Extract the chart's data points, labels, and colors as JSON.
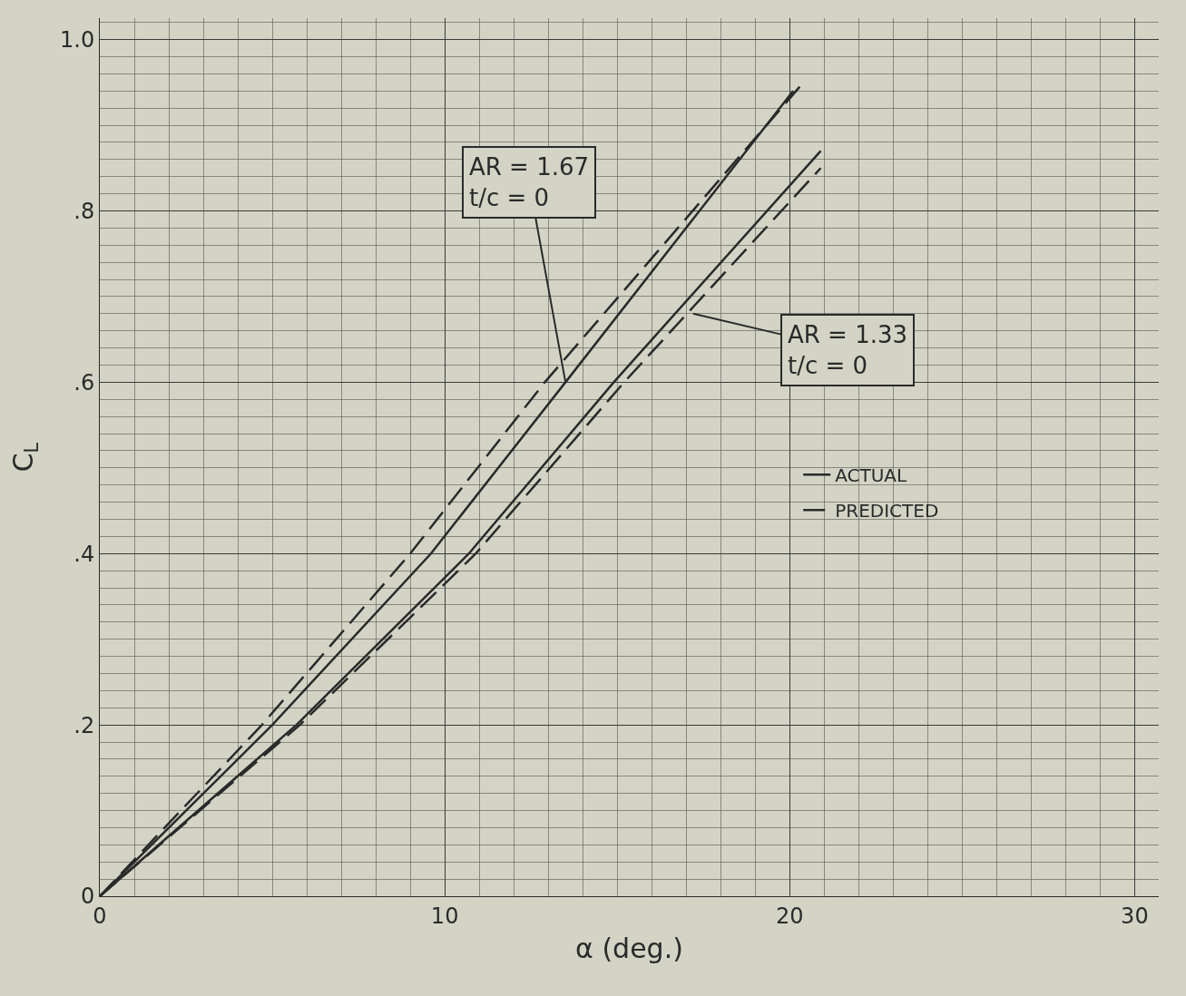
{
  "chart_data": {
    "type": "line",
    "xlabel": "α (deg.)",
    "ylabel": "C$_{L}$",
    "xlim": [
      0,
      30.7
    ],
    "ylim": [
      0,
      1.025
    ],
    "xticks": [
      0,
      10,
      20,
      30
    ],
    "yticks": [
      0,
      {
        "value": 0.2,
        "label": ".2"
      },
      {
        "value": 0.4,
        "label": ".4"
      },
      {
        "value": 0.6,
        "label": ".6"
      },
      {
        "value": 0.8,
        "label": ".8"
      },
      {
        "value": 1.0,
        "label": "1.0"
      }
    ],
    "grid": true,
    "legend": "right",
    "series": [
      {
        "name": "ACTUAL",
        "color": "#2a2a2a",
        "line_style": "solid",
        "x": [
          0,
          5.0,
          9.6,
          13.5,
          20.1
        ],
        "values": [
          0,
          0.2,
          0.4,
          0.6,
          0.94
        ]
      },
      {
        "name": "PREDICTED",
        "color": "#2a2a2a",
        "line_style": "dashed",
        "x": [
          0,
          4.7,
          9.0,
          12.9,
          20.4
        ],
        "values": [
          0,
          0.2,
          0.4,
          0.6,
          0.95
        ]
      },
      {
        "color": "#2a2a2a",
        "line_style": "solid",
        "x": [
          0,
          5.7,
          10.7,
          14.9,
          20.9
        ],
        "values": [
          0,
          0.2,
          0.4,
          0.6,
          0.87
        ]
      },
      {
        "color": "#2a2a2a",
        "line_style": "dashed",
        "x": [
          0,
          5.8,
          10.9,
          15.2,
          20.9
        ],
        "values": [
          0,
          0.2,
          0.4,
          0.6,
          0.85
        ]
      }
    ],
    "annotations": [
      {
        "text": "AR = 1.67\nt/c = 0",
        "x": 13.5,
        "y": 0.6
      },
      {
        "text": "AR = 1.33\nt/c = 0",
        "x": 17.2,
        "y": 0.68
      }
    ]
  }
}
